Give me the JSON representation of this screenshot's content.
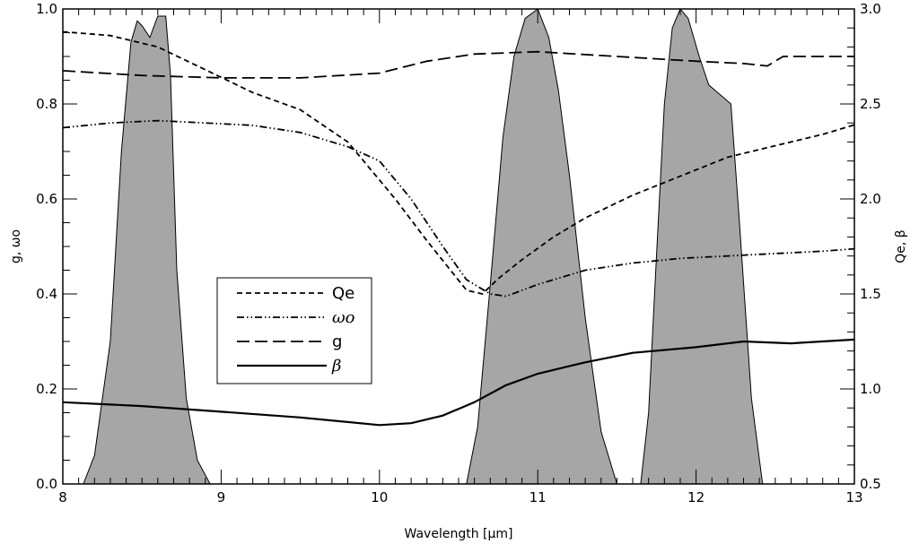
{
  "chart_data": {
    "type": "line",
    "title": "",
    "xlabel": "Wavelength [μm]",
    "ylabel_left": "g, ωo",
    "ylabel_right": "Qe, β",
    "xlim": [
      8,
      13
    ],
    "ylim_left": [
      0,
      1
    ],
    "ylim_right": [
      0.5,
      3.0
    ],
    "grid": false,
    "legend_position": "center-left",
    "x_ticks": [
      "8",
      "9",
      "10",
      "11",
      "12",
      "13"
    ],
    "y_ticks_left": [
      "0.0",
      "0.2",
      "0.4",
      "0.6",
      "0.8",
      "1.0"
    ],
    "y_ticks_right": [
      "0.5",
      "1.0",
      "1.5",
      "2.0",
      "2.5",
      "3.0"
    ],
    "series": [
      {
        "name": "Qe",
        "axis": "right",
        "style": "dashed-short",
        "x": [
          8.0,
          8.3,
          8.6,
          8.9,
          9.2,
          9.5,
          9.8,
          10.1,
          10.3,
          10.55,
          10.65,
          10.75,
          10.9,
          11.1,
          11.3,
          11.6,
          11.9,
          12.2,
          12.5,
          12.8,
          13.0
        ],
        "y": [
          2.88,
          2.86,
          2.8,
          2.68,
          2.56,
          2.47,
          2.3,
          2.0,
          1.78,
          1.52,
          1.5,
          1.58,
          1.68,
          1.8,
          1.9,
          2.02,
          2.12,
          2.22,
          2.28,
          2.34,
          2.39
        ]
      },
      {
        "name": "ωo",
        "axis": "left",
        "style": "dash-dot-dot",
        "x": [
          8.0,
          8.3,
          8.6,
          8.9,
          9.2,
          9.5,
          9.8,
          10.0,
          10.2,
          10.4,
          10.55,
          10.7,
          10.8,
          11.0,
          11.3,
          11.6,
          11.9,
          12.2,
          12.5,
          12.8,
          13.0
        ],
        "y": [
          0.75,
          0.76,
          0.765,
          0.76,
          0.755,
          0.74,
          0.71,
          0.68,
          0.6,
          0.5,
          0.43,
          0.4,
          0.395,
          0.42,
          0.45,
          0.465,
          0.475,
          0.48,
          0.485,
          0.49,
          0.495
        ]
      },
      {
        "name": "g",
        "axis": "left",
        "style": "dashed-long",
        "x": [
          8.0,
          8.5,
          9.0,
          9.5,
          10.0,
          10.3,
          10.6,
          11.0,
          11.5,
          12.0,
          12.3,
          12.45,
          12.55,
          13.0
        ],
        "y": [
          0.87,
          0.86,
          0.855,
          0.855,
          0.865,
          0.89,
          0.905,
          0.91,
          0.9,
          0.89,
          0.885,
          0.88,
          0.9,
          0.9
        ]
      },
      {
        "name": "β",
        "axis": "right",
        "style": "solid",
        "x": [
          8.0,
          8.5,
          9.0,
          9.5,
          10.0,
          10.2,
          10.4,
          10.6,
          10.8,
          11.0,
          11.3,
          11.6,
          12.0,
          12.3,
          12.6,
          13.0
        ],
        "y": [
          0.93,
          0.91,
          0.88,
          0.85,
          0.81,
          0.82,
          0.86,
          0.93,
          1.02,
          1.08,
          1.14,
          1.19,
          1.22,
          1.25,
          1.24,
          1.26
        ]
      }
    ],
    "filter_bands": [
      {
        "axis": "left",
        "x": [
          8.13,
          8.2,
          8.3,
          8.37,
          8.43,
          8.47,
          8.5,
          8.55,
          8.6,
          8.65,
          8.68,
          8.72,
          8.78,
          8.85,
          8.93
        ],
        "y": [
          0.0,
          0.06,
          0.3,
          0.7,
          0.93,
          0.975,
          0.965,
          0.94,
          0.985,
          0.985,
          0.86,
          0.45,
          0.18,
          0.05,
          0.0
        ]
      },
      {
        "axis": "left",
        "x": [
          10.55,
          10.62,
          10.7,
          10.78,
          10.85,
          10.92,
          11.0,
          11.07,
          11.13,
          11.2,
          11.3,
          11.4,
          11.5
        ],
        "y": [
          0.0,
          0.12,
          0.42,
          0.73,
          0.9,
          0.98,
          1.0,
          0.94,
          0.83,
          0.65,
          0.35,
          0.11,
          0.0
        ]
      },
      {
        "axis": "left",
        "x": [
          11.65,
          11.7,
          11.75,
          11.8,
          11.85,
          11.9,
          11.95,
          12.02,
          12.08,
          12.15,
          12.22,
          12.27,
          12.35,
          12.42
        ],
        "y": [
          0.0,
          0.15,
          0.48,
          0.8,
          0.96,
          1.0,
          0.98,
          0.9,
          0.84,
          0.82,
          0.8,
          0.57,
          0.18,
          0.0
        ]
      }
    ]
  }
}
